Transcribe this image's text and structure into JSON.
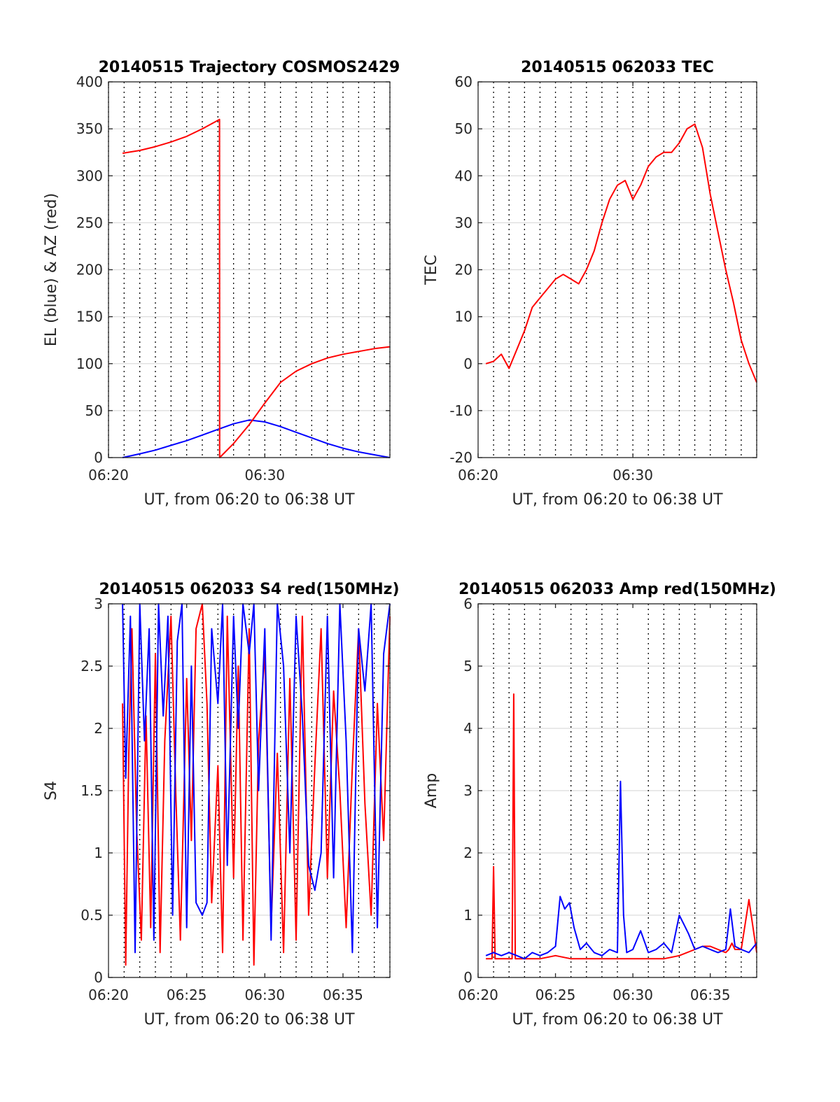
{
  "colors": {
    "elevation": "#0000ff",
    "azimuth": "#ff0000",
    "red_series": "#ff0000",
    "blue_series": "#0000ff",
    "grid": "#dcdcdc",
    "axis": "#262626"
  },
  "chart_data": [
    {
      "type": "line",
      "title": "20140515 Trajectory COSMOS2429",
      "xlabel": "UT, from 06:20 to 06:38 UT",
      "ylabel": "EL (blue) & AZ (red)",
      "x_unit": "minutes after 06:00 UT",
      "xlim": [
        20,
        38
      ],
      "ylim": [
        0,
        400
      ],
      "x_ticks": [
        20,
        30
      ],
      "x_tick_labels": [
        "06:20",
        "06:30"
      ],
      "y_ticks": [
        0,
        50,
        100,
        150,
        200,
        250,
        300,
        350,
        400
      ],
      "y_tick_labels": [
        "0",
        "50",
        "100",
        "150",
        "200",
        "250",
        "300",
        "350",
        "400"
      ],
      "grid": true,
      "series": [
        {
          "name": "EL (blue)",
          "color": "#0000ff",
          "x": [
            20.9,
            22,
            23,
            24,
            25,
            26,
            27,
            28,
            29,
            30,
            31,
            32,
            33,
            34,
            35,
            36,
            37,
            38
          ],
          "y": [
            0,
            4,
            8,
            13,
            18,
            24,
            30,
            36,
            40,
            38,
            33,
            27,
            21,
            15,
            10,
            6,
            3,
            0
          ]
        },
        {
          "name": "AZ (red)",
          "color": "#ff0000",
          "x": [
            20.9,
            22,
            23,
            24,
            25,
            26,
            27.1,
            27.11,
            28,
            29,
            30,
            31,
            32,
            33,
            34,
            35,
            36,
            37,
            38
          ],
          "y": [
            324,
            327,
            331,
            336,
            342,
            350,
            360,
            0,
            15,
            35,
            58,
            80,
            92,
            100,
            106,
            110,
            113,
            116,
            118
          ]
        }
      ]
    },
    {
      "type": "line",
      "title": "20140515 062033 TEC",
      "xlabel": "UT, from 06:20 to 06:38 UT",
      "ylabel": "TEC",
      "x_unit": "minutes after 06:00 UT",
      "xlim": [
        20,
        38
      ],
      "ylim": [
        -20,
        60
      ],
      "x_ticks": [
        20,
        30
      ],
      "x_tick_labels": [
        "06:20",
        "06:30"
      ],
      "y_ticks": [
        -20,
        -10,
        0,
        10,
        20,
        30,
        40,
        50,
        60
      ],
      "y_tick_labels": [
        "-20",
        "-10",
        "0",
        "10",
        "20",
        "30",
        "40",
        "50",
        "60"
      ],
      "grid": true,
      "series": [
        {
          "name": "TEC",
          "color": "#ff0000",
          "x": [
            20.5,
            21,
            21.5,
            22,
            22.5,
            23,
            23.5,
            24,
            24.5,
            25,
            25.5,
            26,
            26.5,
            27,
            27.5,
            28,
            28.5,
            29,
            29.5,
            30,
            30.5,
            31,
            31.5,
            32,
            32.5,
            33,
            33.5,
            34,
            34.5,
            35,
            35.5,
            36,
            36.5,
            37,
            37.5,
            38
          ],
          "y": [
            0,
            0.5,
            2,
            -1,
            3,
            7,
            12,
            14,
            16,
            18,
            19,
            18,
            17,
            20,
            24,
            30,
            35,
            38,
            39,
            35,
            38,
            42,
            44,
            45,
            45,
            47,
            50,
            51,
            46,
            36,
            28,
            20,
            13,
            5,
            0,
            -4
          ]
        }
      ]
    },
    {
      "type": "line",
      "title": "20140515 062033 S4 red(150MHz)",
      "xlabel": "UT, from 06:20 to 06:38 UT",
      "ylabel": "S4",
      "x_unit": "minutes after 06:00 UT",
      "xlim": [
        20,
        38
      ],
      "ylim": [
        0,
        3
      ],
      "x_ticks": [
        20,
        25,
        30,
        35
      ],
      "x_tick_labels": [
        "06:20",
        "06:25",
        "06:30",
        "06:35"
      ],
      "y_ticks": [
        0,
        0.5,
        1,
        1.5,
        2,
        2.5,
        3
      ],
      "y_tick_labels": [
        "0",
        "0.5",
        "1",
        "1.5",
        "2",
        "2.5",
        "3"
      ],
      "grid": true,
      "series": [
        {
          "name": "red (150MHz)",
          "color": "#ff0000",
          "x": [
            20.9,
            21.1,
            21.3,
            21.5,
            21.8,
            22.1,
            22.4,
            22.7,
            23.0,
            23.3,
            23.6,
            24.0,
            24.3,
            24.6,
            25.0,
            25.3,
            25.6,
            26.0,
            26.3,
            26.6,
            27.0,
            27.3,
            27.6,
            28.0,
            28.3,
            28.6,
            29.0,
            29.3,
            29.6,
            30.0,
            30.4,
            30.8,
            31.2,
            31.6,
            32.0,
            32.4,
            32.8,
            33.2,
            33.6,
            34.0,
            34.4,
            34.8,
            35.2,
            35.6,
            36.0,
            36.4,
            36.8,
            37.2,
            37.6,
            38.0
          ],
          "y": [
            2.2,
            0.1,
            1.8,
            2.8,
            1.2,
            0.3,
            2.1,
            0.4,
            2.6,
            0.2,
            1.9,
            2.9,
            1.5,
            0.3,
            2.4,
            1.1,
            2.8,
            3.0,
            2.2,
            0.6,
            1.7,
            0.2,
            2.9,
            0.8,
            2.5,
            0.3,
            2.8,
            0.1,
            1.9,
            2.6,
            0.4,
            1.8,
            0.2,
            2.4,
            0.3,
            2.9,
            0.5,
            1.7,
            2.8,
            0.8,
            2.3,
            1.5,
            0.4,
            1.7,
            2.8,
            1.4,
            0.5,
            2.2,
            1.1,
            2.9
          ]
        },
        {
          "name": "blue",
          "color": "#0000ff",
          "x": [
            20.9,
            21.1,
            21.4,
            21.7,
            22.0,
            22.3,
            22.6,
            22.9,
            23.2,
            23.5,
            23.8,
            24.1,
            24.4,
            24.7,
            25.0,
            25.3,
            25.6,
            26.0,
            26.3,
            26.6,
            27.0,
            27.3,
            27.6,
            28.0,
            28.3,
            28.6,
            29.0,
            29.3,
            29.6,
            30.0,
            30.4,
            30.8,
            31.2,
            31.6,
            32.0,
            32.4,
            32.8,
            33.2,
            33.6,
            34.0,
            34.4,
            34.8,
            35.2,
            35.6,
            36.0,
            36.4,
            36.8,
            37.2,
            37.6,
            38.0
          ],
          "y": [
            3.0,
            1.6,
            2.9,
            0.2,
            3.0,
            1.9,
            2.8,
            0.3,
            3.0,
            2.1,
            2.9,
            0.5,
            2.7,
            3.0,
            0.4,
            2.5,
            0.6,
            0.5,
            0.6,
            2.8,
            2.2,
            3.0,
            0.9,
            2.9,
            2.0,
            3.0,
            2.6,
            3.0,
            1.5,
            2.8,
            0.3,
            3.0,
            2.5,
            1.0,
            2.9,
            2.1,
            0.9,
            0.7,
            1.0,
            2.9,
            0.8,
            3.0,
            1.9,
            0.2,
            2.8,
            2.3,
            3.0,
            0.4,
            2.6,
            3.0
          ]
        }
      ]
    },
    {
      "type": "line",
      "title": "20140515 062033 Amp red(150MHz)",
      "xlabel": "UT, from 06:20 to 06:38 UT",
      "ylabel": "Amp",
      "x_unit": "minutes after 06:00 UT",
      "xlim": [
        20,
        38
      ],
      "ylim": [
        0,
        6
      ],
      "x_ticks": [
        20,
        25,
        30,
        35
      ],
      "x_tick_labels": [
        "06:20",
        "06:25",
        "06:30",
        "06:35"
      ],
      "y_ticks": [
        0,
        1,
        2,
        3,
        4,
        5,
        6
      ],
      "y_tick_labels": [
        "0",
        "1",
        "2",
        "3",
        "4",
        "5",
        "6"
      ],
      "grid": true,
      "series": [
        {
          "name": "red (150MHz)",
          "color": "#ff0000",
          "x": [
            20.5,
            20.9,
            21.0,
            21.1,
            21.5,
            22.2,
            22.3,
            22.4,
            23,
            24,
            25,
            26,
            27,
            28,
            29,
            30,
            31,
            32,
            33,
            34,
            34.5,
            35,
            35.5,
            36,
            36.2,
            36.4,
            36.6,
            37,
            37.5,
            38
          ],
          "y": [
            0.3,
            0.3,
            1.78,
            0.3,
            0.3,
            0.3,
            4.55,
            0.3,
            0.3,
            0.3,
            0.35,
            0.3,
            0.3,
            0.3,
            0.3,
            0.3,
            0.3,
            0.3,
            0.35,
            0.45,
            0.5,
            0.5,
            0.45,
            0.4,
            0.45,
            0.55,
            0.45,
            0.45,
            1.25,
            0.4
          ]
        },
        {
          "name": "blue",
          "color": "#0000ff",
          "x": [
            20.5,
            21,
            21.5,
            22,
            22.5,
            23,
            23.5,
            24,
            24.5,
            25,
            25.3,
            25.6,
            25.9,
            26.2,
            26.6,
            27,
            27.5,
            28,
            28.5,
            29,
            29.2,
            29.4,
            29.6,
            30,
            30.5,
            31,
            31.5,
            32,
            32.5,
            33,
            33.3,
            33.6,
            34,
            34.5,
            35,
            35.5,
            36,
            36.3,
            36.6,
            37,
            37.5,
            38
          ],
          "y": [
            0.35,
            0.4,
            0.35,
            0.4,
            0.35,
            0.3,
            0.4,
            0.35,
            0.4,
            0.5,
            1.3,
            1.1,
            1.2,
            0.8,
            0.45,
            0.55,
            0.4,
            0.35,
            0.45,
            0.4,
            3.15,
            1.0,
            0.4,
            0.45,
            0.75,
            0.4,
            0.45,
            0.55,
            0.4,
            1.0,
            0.85,
            0.7,
            0.45,
            0.5,
            0.45,
            0.4,
            0.45,
            1.1,
            0.5,
            0.45,
            0.4,
            0.55
          ]
        }
      ]
    }
  ]
}
